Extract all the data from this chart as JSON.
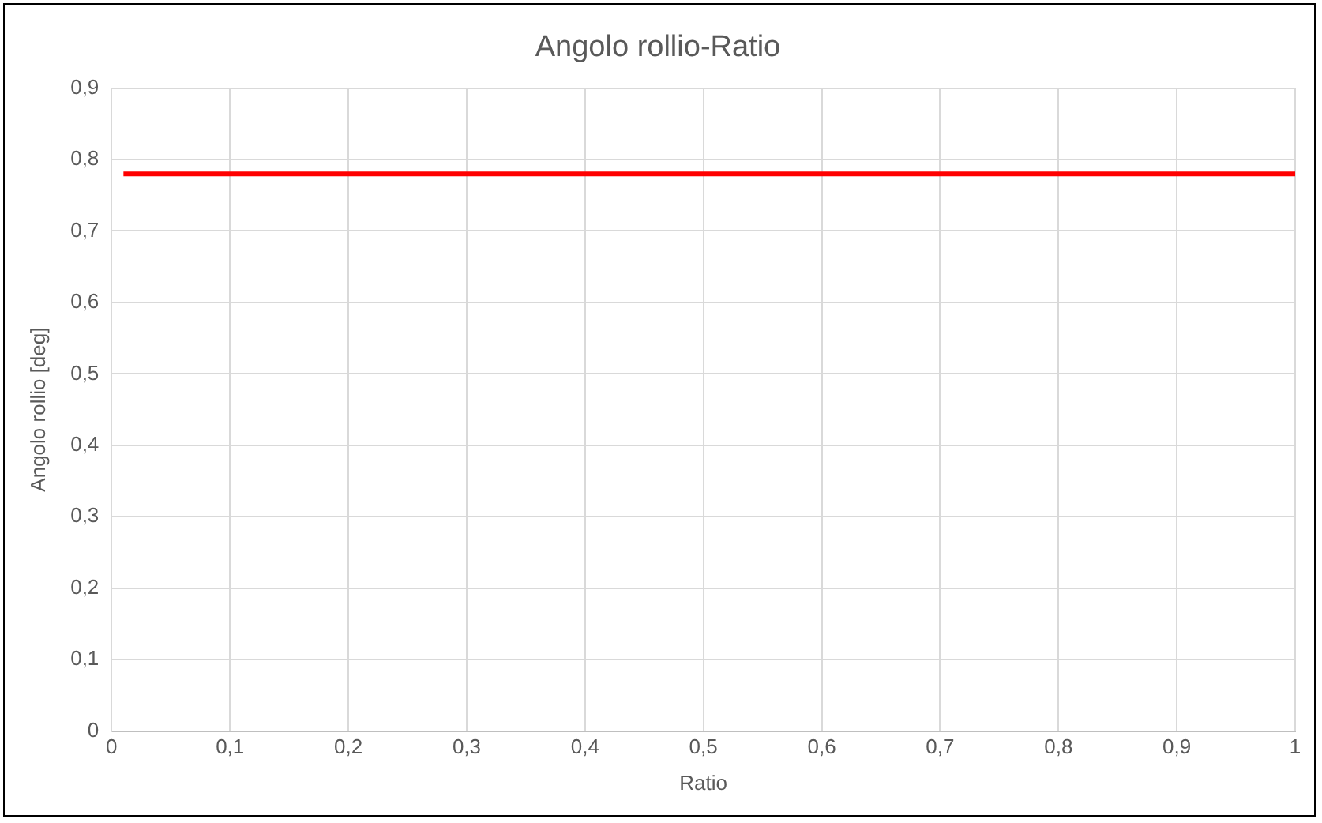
{
  "chart_data": {
    "type": "line",
    "title": "Angolo rollio-Ratio",
    "xlabel": "Ratio",
    "ylabel": "Angolo rollio [deg]",
    "x": [
      0.01,
      1
    ],
    "series": [
      {
        "color": "#ff0000",
        "values": [
          0.78,
          0.78
        ]
      }
    ],
    "xlim": [
      0,
      1
    ],
    "ylim": [
      0,
      0.9
    ],
    "xticks": [
      0,
      {
        "value": 0.1,
        "label": "0,1"
      },
      {
        "value": 0.2,
        "label": "0,2"
      },
      {
        "value": 0.3,
        "label": "0,3"
      },
      {
        "value": 0.4,
        "label": "0,4"
      },
      {
        "value": 0.5,
        "label": "0,5"
      },
      {
        "value": 0.6,
        "label": "0,6"
      },
      {
        "value": 0.7,
        "label": "0,7"
      },
      {
        "value": 0.8,
        "label": "0,8"
      },
      {
        "value": 0.9,
        "label": "0,9"
      },
      1
    ],
    "yticks": [
      0,
      {
        "value": 0.1,
        "label": "0,1"
      },
      {
        "value": 0.2,
        "label": "0,2"
      },
      {
        "value": 0.3,
        "label": "0,3"
      },
      {
        "value": 0.4,
        "label": "0,4"
      },
      {
        "value": 0.5,
        "label": "0,5"
      },
      {
        "value": 0.6,
        "label": "0,6"
      },
      {
        "value": 0.7,
        "label": "0,7"
      },
      {
        "value": 0.8,
        "label": "0,8"
      },
      {
        "value": 0.9,
        "label": "0,9"
      }
    ],
    "grid": true,
    "legend": false,
    "marker": "none",
    "line_style": "solid"
  }
}
